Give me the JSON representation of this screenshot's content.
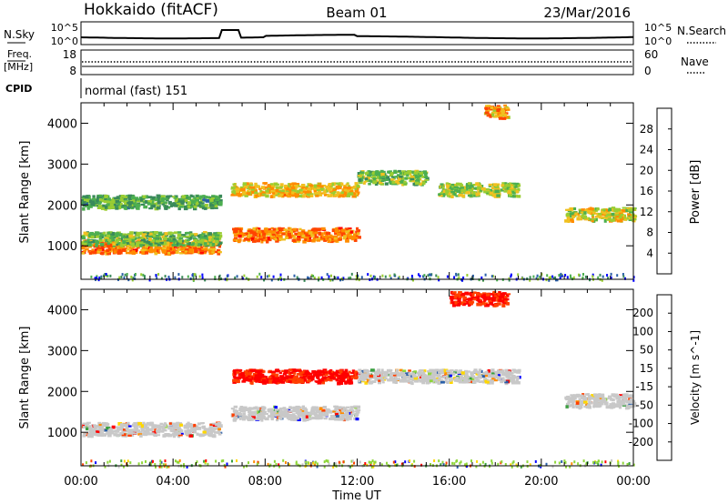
{
  "header": {
    "station": "Hokkaido (fitACF)",
    "beam": "Beam 01",
    "date": "23/Mar/2016"
  },
  "noise_panel": {
    "left_label": "N.Sky",
    "left_ticks": [
      "10^5",
      "10^0"
    ],
    "right_label": "N.Search",
    "right_ticks": [
      "10^5",
      "10^0"
    ]
  },
  "freq_panel": {
    "left_label_1": "Freq.",
    "left_label_2": "[MHz]",
    "left_ticks": [
      "18",
      "8"
    ],
    "right_label": "Nave",
    "right_ticks": [
      "60",
      "0"
    ]
  },
  "cpid_panel": {
    "left_label": "CPID",
    "text": "normal (fast) 151"
  },
  "colors": {
    "power": [
      "#0000ff",
      "#2a5fa8",
      "#3a8a5a",
      "#4caf50",
      "#9acd32",
      "#f0c020",
      "#ff8c00",
      "#ff4500",
      "#ff0000"
    ],
    "velocity": [
      "#ff0000",
      "#ff4000",
      "#ff8c00",
      "#ffd700",
      "#c8c8c8",
      "#8fd63a",
      "#3aa040",
      "#2a5fa8",
      "#0000ff"
    ],
    "ground_scatter": "#c8c8c8"
  },
  "chart_data": [
    {
      "type": "heatmap",
      "title": "",
      "xlabel": "Time UT",
      "ylabel": "Slant Range [km]",
      "xlim": [
        0,
        24
      ],
      "ylim": [
        180,
        4500
      ],
      "x_ticks": [
        "00:00",
        "04:00",
        "08:00",
        "12:00",
        "16:00",
        "20:00",
        "00:00"
      ],
      "y_ticks": [
        1000,
        2000,
        3000,
        4000
      ],
      "colorbar": {
        "label": "Power [dB]",
        "ticks": [
          4,
          8,
          12,
          16,
          20,
          24,
          28
        ],
        "range": [
          0,
          32
        ]
      },
      "features": [
        {
          "t_start": 0.0,
          "t_end": 6.0,
          "range_km": 1000,
          "power_db": 24
        },
        {
          "t_start": 0.0,
          "t_end": 6.0,
          "range_km": 1200,
          "power_db": 14
        },
        {
          "t_start": 0.0,
          "t_end": 6.0,
          "range_km": 2100,
          "power_db": 12
        },
        {
          "t_start": 6.5,
          "t_end": 12.0,
          "range_km": 1300,
          "power_db": 24
        },
        {
          "t_start": 6.5,
          "t_end": 12.0,
          "range_km": 2400,
          "power_db": 20
        },
        {
          "t_start": 12.0,
          "t_end": 15.0,
          "range_km": 2700,
          "power_db": 14
        },
        {
          "t_start": 15.5,
          "t_end": 19.0,
          "range_km": 2400,
          "power_db": 16
        },
        {
          "t_start": 17.5,
          "t_end": 18.5,
          "range_km": 4300,
          "power_db": 22
        },
        {
          "t_start": 21.0,
          "t_end": 24.0,
          "range_km": 1800,
          "power_db": 18
        }
      ]
    },
    {
      "type": "heatmap",
      "title": "",
      "xlabel": "Time UT",
      "ylabel": "Slant Range [km]",
      "xlim": [
        0,
        24
      ],
      "ylim": [
        180,
        4500
      ],
      "x_ticks": [
        "00:00",
        "04:00",
        "08:00",
        "12:00",
        "16:00",
        "20:00",
        "00:00"
      ],
      "y_ticks": [
        1000,
        2000,
        3000,
        4000
      ],
      "colorbar": {
        "label": "Velocity [m s^-1]",
        "ticks": [
          200,
          100,
          50,
          15,
          -15,
          -50,
          -100,
          -200
        ],
        "range": [
          -250,
          250
        ]
      },
      "features": [
        {
          "t_start": 0.0,
          "t_end": 6.0,
          "range_km": 1100,
          "velocity": 0
        },
        {
          "t_start": 6.5,
          "t_end": 12.0,
          "range_km": 1500,
          "velocity": 0
        },
        {
          "t_start": 6.5,
          "t_end": 12.0,
          "range_km": 2400,
          "velocity": -30
        },
        {
          "t_start": 12.0,
          "t_end": 19.0,
          "range_km": 2400,
          "velocity": 0
        },
        {
          "t_start": 16.0,
          "t_end": 18.5,
          "range_km": 4300,
          "velocity": -200
        },
        {
          "t_start": 21.0,
          "t_end": 24.0,
          "range_km": 1800,
          "velocity": 0
        }
      ]
    }
  ]
}
